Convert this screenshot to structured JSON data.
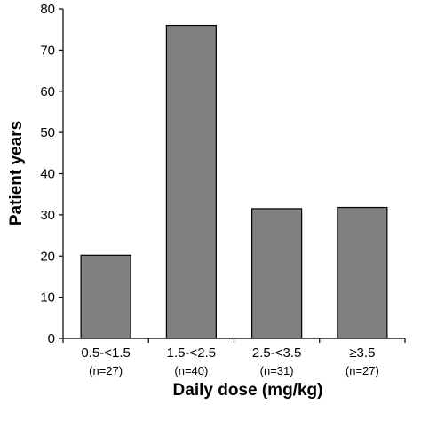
{
  "chart_data": {
    "type": "bar",
    "title": "",
    "xlabel": "Daily dose (mg/kg)",
    "ylabel": "Patient years",
    "categories": [
      "0.5-<1.5",
      "1.5-<2.5",
      "2.5-<3.5",
      "≥3.5"
    ],
    "sublabels": [
      "(n=27)",
      "(n=40)",
      "(n=31)",
      "(n=27)"
    ],
    "values": [
      20.2,
      76,
      31.5,
      31.8
    ],
    "ylim": [
      0,
      80
    ],
    "yticks": [
      0,
      10,
      20,
      30,
      40,
      50,
      60,
      70,
      80
    ],
    "grid": false,
    "bar_color": "#808080",
    "bar_edge_color": "#000000"
  }
}
